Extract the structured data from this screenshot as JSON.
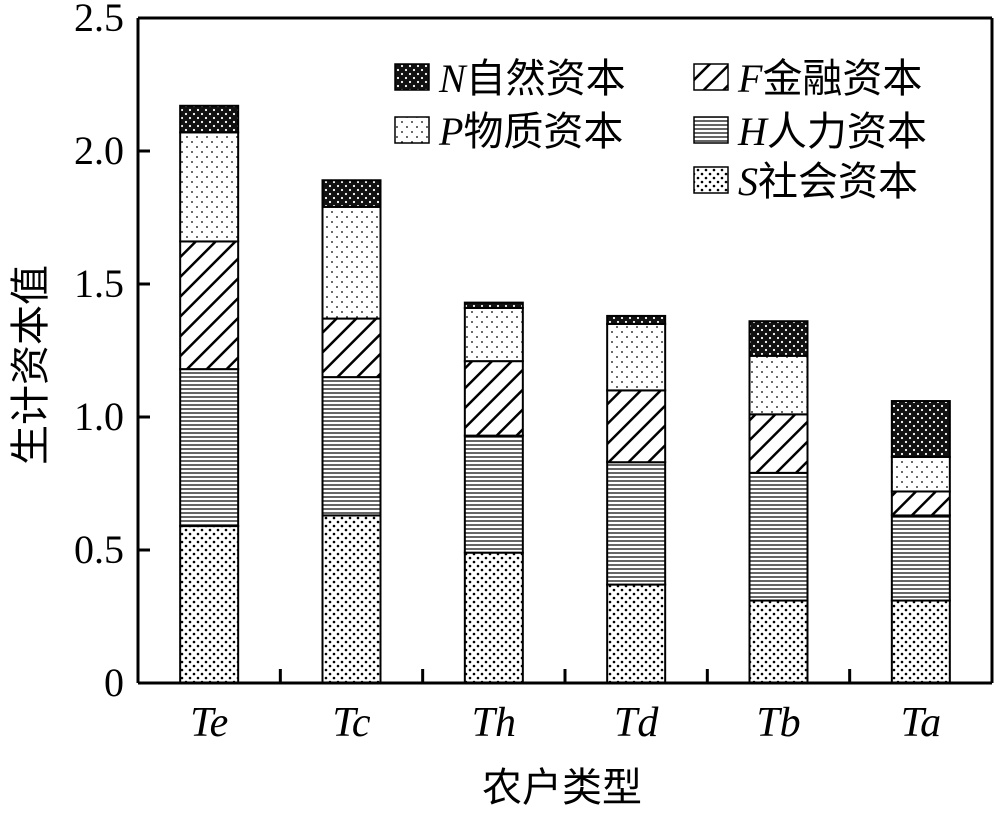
{
  "chart_data": {
    "type": "bar",
    "stacked": true,
    "xlabel": "农户类型",
    "ylabel": "生计资本值",
    "ylim": [
      0,
      2.5
    ],
    "yticks": [
      "0",
      "0.5",
      "1.0",
      "1.5",
      "2.0",
      "2.5"
    ],
    "categories": [
      "Te",
      "Tc",
      "Th",
      "Td",
      "Tb",
      "Ta"
    ],
    "series": [
      {
        "code": "S",
        "name": "社会资本",
        "pattern": "dots-fine",
        "values": [
          0.59,
          0.63,
          0.49,
          0.37,
          0.31,
          0.31
        ]
      },
      {
        "code": "H",
        "name": "人力资本",
        "pattern": "horizontal-lines",
        "values": [
          0.59,
          0.52,
          0.44,
          0.46,
          0.48,
          0.32
        ]
      },
      {
        "code": "F",
        "name": "金融资本",
        "pattern": "diagonal-hatch",
        "values": [
          0.48,
          0.22,
          0.28,
          0.27,
          0.22,
          0.09
        ]
      },
      {
        "code": "P",
        "name": "物质资本",
        "pattern": "sparse-dots",
        "values": [
          0.41,
          0.42,
          0.2,
          0.25,
          0.22,
          0.13
        ]
      },
      {
        "code": "N",
        "name": "自然资本",
        "pattern": "dark-dots",
        "values": [
          0.1,
          0.1,
          0.02,
          0.03,
          0.13,
          0.21
        ]
      }
    ],
    "legend": {
      "placement": "top-right",
      "order": [
        "N",
        "F",
        "P",
        "H",
        "S"
      ]
    },
    "grid": false
  }
}
